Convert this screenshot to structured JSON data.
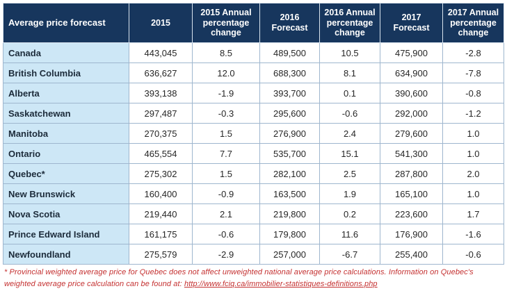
{
  "table": {
    "columns": [
      "Average price forecast",
      "2015",
      "2015 Annual percentage change",
      "2016 Forecast",
      "2016 Annual percentage change",
      "2017 Forecast",
      "2017 Annual percentage change"
    ],
    "rows": [
      {
        "label": "Canada",
        "values": [
          "443,045",
          "8.5",
          "489,500",
          "10.5",
          "475,900",
          "-2.8"
        ]
      },
      {
        "label": "British Columbia",
        "values": [
          "636,627",
          "12.0",
          "688,300",
          "8.1",
          "634,900",
          "-7.8"
        ]
      },
      {
        "label": "Alberta",
        "values": [
          "393,138",
          "-1.9",
          "393,700",
          "0.1",
          "390,600",
          "-0.8"
        ]
      },
      {
        "label": "Saskatchewan",
        "values": [
          "297,487",
          "-0.3",
          "295,600",
          "-0.6",
          "292,000",
          "-1.2"
        ]
      },
      {
        "label": "Manitoba",
        "values": [
          "270,375",
          "1.5",
          "276,900",
          "2.4",
          "279,600",
          "1.0"
        ]
      },
      {
        "label": "Ontario",
        "values": [
          "465,554",
          "7.7",
          "535,700",
          "15.1",
          "541,300",
          "1.0"
        ]
      },
      {
        "label": "Quebec*",
        "values": [
          "275,302",
          "1.5",
          "282,100",
          "2.5",
          "287,800",
          "2.0"
        ]
      },
      {
        "label": "New Brunswick",
        "values": [
          "160,400",
          "-0.9",
          "163,500",
          "1.9",
          "165,100",
          "1.0"
        ]
      },
      {
        "label": "Nova Scotia",
        "values": [
          "219,440",
          "2.1",
          "219,800",
          "0.2",
          "223,600",
          "1.7"
        ]
      },
      {
        "label": "Prince Edward Island",
        "values": [
          "161,175",
          "-0.6",
          "179,800",
          "11.6",
          "176,900",
          "-1.6"
        ]
      },
      {
        "label": "Newfoundland",
        "values": [
          "275,579",
          "-2.9",
          "257,000",
          "-6.7",
          "255,400",
          "-0.6"
        ]
      }
    ]
  },
  "footnote": {
    "text_before_link": "* Provincial weighted average price for Quebec does not affect unweighted national average price calculations. Information on Quebec's weighted average price calculation can be found at: ",
    "link_text": "http://www.fciq.ca/immobilier-statistiques-definitions.php"
  },
  "colors": {
    "header_bg": "#17365D",
    "label_bg": "#CDE7F6",
    "grid": "#9EB6CE",
    "footnote": "#C43030"
  },
  "chart_data": {
    "type": "table",
    "title": "Average price forecast",
    "columns": [
      "Average price forecast",
      "2015",
      "2015 Annual percentage change",
      "2016 Forecast",
      "2016 Annual percentage change",
      "2017 Forecast",
      "2017 Annual percentage change"
    ],
    "rows": [
      [
        "Canada",
        443045,
        8.5,
        489500,
        10.5,
        475900,
        -2.8
      ],
      [
        "British Columbia",
        636627,
        12.0,
        688300,
        8.1,
        634900,
        -7.8
      ],
      [
        "Alberta",
        393138,
        -1.9,
        393700,
        0.1,
        390600,
        -0.8
      ],
      [
        "Saskatchewan",
        297487,
        -0.3,
        295600,
        -0.6,
        292000,
        -1.2
      ],
      [
        "Manitoba",
        270375,
        1.5,
        276900,
        2.4,
        279600,
        1.0
      ],
      [
        "Ontario",
        465554,
        7.7,
        535700,
        15.1,
        541300,
        1.0
      ],
      [
        "Quebec*",
        275302,
        1.5,
        282100,
        2.5,
        287800,
        2.0
      ],
      [
        "New Brunswick",
        160400,
        -0.9,
        163500,
        1.9,
        165100,
        1.0
      ],
      [
        "Nova Scotia",
        219440,
        2.1,
        219800,
        0.2,
        223600,
        1.7
      ],
      [
        "Prince Edward Island",
        161175,
        -0.6,
        179800,
        11.6,
        176900,
        -1.6
      ],
      [
        "Newfoundland",
        275579,
        -2.9,
        257000,
        -6.7,
        255400,
        -0.6
      ]
    ],
    "footnote": "* Provincial weighted average price for Quebec does not affect unweighted national average price calculations. Information on Quebec's weighted average price calculation can be found at: http://www.fciq.ca/immobilier-statistiques-definitions.php"
  }
}
